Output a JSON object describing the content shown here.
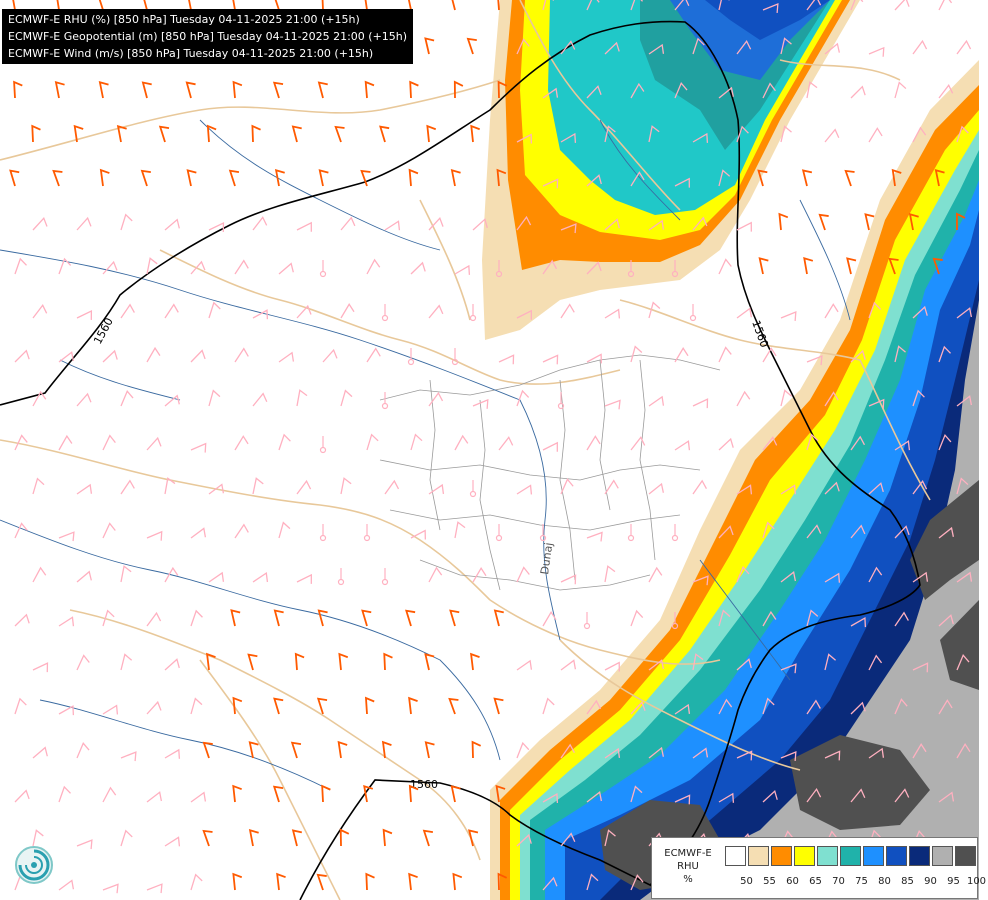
{
  "legend": {
    "lines": [
      "ECMWF-E RHU (%) [850 hPa] Tuesday 04-11-2025 21:00 (+15h)",
      "ECMWF-E Geopotential (m) [850 hPa] Tuesday 04-11-2025 21:00 (+15h)",
      "ECMWF-E Wind (m/s) [850 hPa] Tuesday 04-11-2025 21:00 (+15h)"
    ]
  },
  "colorbar": {
    "title_line1": "ECMWF-E",
    "title_line2": "RHU",
    "unit": "%",
    "ticks": [
      "50",
      "55",
      "60",
      "65",
      "70",
      "75",
      "80",
      "85",
      "90",
      "95",
      "100"
    ],
    "colors": [
      "#ffffff",
      "#f5deb3",
      "#ff8c00",
      "#ffff00",
      "#7fe0d0",
      "#20b2aa",
      "#1e90ff",
      "#1050c0",
      "#0a2a7a",
      "#b0b0b0",
      "#505050"
    ]
  },
  "contours": {
    "geopotential_label_1": "1560",
    "geopotential_label_2": "1560",
    "geopotential_label_3": "1560"
  },
  "map_labels": {
    "river": "Dunaj"
  },
  "logo": {
    "name": "ecmwf-logo-icon"
  }
}
